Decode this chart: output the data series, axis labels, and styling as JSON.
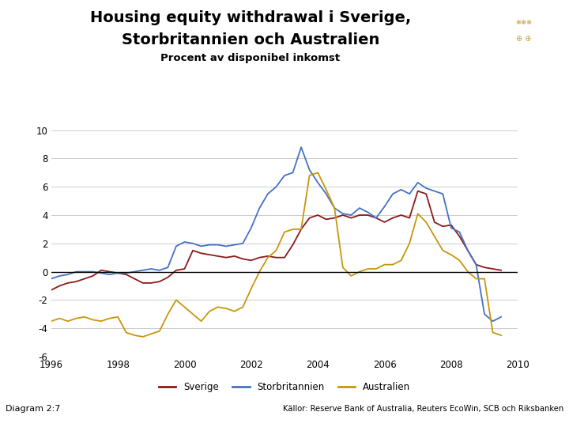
{
  "title_line1": "Housing equity withdrawal i Sverige,",
  "title_line2": "Storbritannien och Australien",
  "subtitle": "Procent av disponibel inkomst",
  "ylim": [
    -6,
    10
  ],
  "yticks": [
    -6,
    -4,
    -2,
    0,
    2,
    4,
    6,
    8,
    10
  ],
  "xlim": [
    1996,
    2010
  ],
  "xticks": [
    1996,
    1998,
    2000,
    2002,
    2004,
    2006,
    2008,
    2010
  ],
  "background_color": "#ffffff",
  "footer_bar_color": "#1a3a7a",
  "legend_labels": [
    "Sverige",
    "Storbritannien",
    "Australien"
  ],
  "source_text": "Källor: Reserve Bank of Australia, Reuters EcoWin, SCB och Riksbanken",
  "diagram_label": "Diagram 2:7",
  "sverige": {
    "years": [
      1996.0,
      1996.25,
      1996.5,
      1996.75,
      1997.0,
      1997.25,
      1997.5,
      1997.75,
      1998.0,
      1998.25,
      1998.5,
      1998.75,
      1999.0,
      1999.25,
      1999.5,
      1999.75,
      2000.0,
      2000.25,
      2000.5,
      2000.75,
      2001.0,
      2001.25,
      2001.5,
      2001.75,
      2002.0,
      2002.25,
      2002.5,
      2002.75,
      2003.0,
      2003.25,
      2003.5,
      2003.75,
      2004.0,
      2004.25,
      2004.5,
      2004.75,
      2005.0,
      2005.25,
      2005.5,
      2005.75,
      2006.0,
      2006.25,
      2006.5,
      2006.75,
      2007.0,
      2007.25,
      2007.5,
      2007.75,
      2008.0,
      2008.25,
      2008.5,
      2008.75,
      2009.0,
      2009.25,
      2009.5
    ],
    "values": [
      -1.3,
      -1.0,
      -0.8,
      -0.7,
      -0.5,
      -0.3,
      0.1,
      0.0,
      -0.1,
      -0.2,
      -0.5,
      -0.8,
      -0.8,
      -0.7,
      -0.4,
      0.1,
      0.2,
      1.5,
      1.3,
      1.2,
      1.1,
      1.0,
      1.1,
      0.9,
      0.8,
      1.0,
      1.1,
      1.0,
      1.0,
      1.9,
      3.0,
      3.8,
      4.0,
      3.7,
      3.8,
      4.0,
      3.8,
      4.0,
      4.0,
      3.8,
      3.5,
      3.8,
      4.0,
      3.8,
      5.7,
      5.5,
      3.5,
      3.2,
      3.3,
      2.5,
      1.5,
      0.5,
      0.3,
      0.2,
      0.1
    ]
  },
  "storbritannien": {
    "years": [
      1996.0,
      1996.25,
      1996.5,
      1996.75,
      1997.0,
      1997.25,
      1997.5,
      1997.75,
      1998.0,
      1998.25,
      1998.5,
      1998.75,
      1999.0,
      1999.25,
      1999.5,
      1999.75,
      2000.0,
      2000.25,
      2000.5,
      2000.75,
      2001.0,
      2001.25,
      2001.5,
      2001.75,
      2002.0,
      2002.25,
      2002.5,
      2002.75,
      2003.0,
      2003.25,
      2003.5,
      2003.75,
      2004.0,
      2004.25,
      2004.5,
      2004.75,
      2005.0,
      2005.25,
      2005.5,
      2005.75,
      2006.0,
      2006.25,
      2006.5,
      2006.75,
      2007.0,
      2007.25,
      2007.5,
      2007.75,
      2008.0,
      2008.25,
      2008.5,
      2008.75,
      2009.0,
      2009.25,
      2009.5
    ],
    "values": [
      -0.5,
      -0.3,
      -0.2,
      0.0,
      0.0,
      0.0,
      -0.1,
      -0.2,
      -0.1,
      -0.1,
      0.0,
      0.1,
      0.2,
      0.1,
      0.3,
      1.8,
      2.1,
      2.0,
      1.8,
      1.9,
      1.9,
      1.8,
      1.9,
      2.0,
      3.1,
      4.5,
      5.5,
      6.0,
      6.8,
      7.0,
      8.8,
      7.2,
      6.3,
      5.5,
      4.5,
      4.1,
      4.0,
      4.5,
      4.2,
      3.8,
      4.6,
      5.5,
      5.8,
      5.5,
      6.3,
      5.9,
      5.7,
      5.5,
      3.1,
      2.8,
      1.5,
      0.5,
      -3.0,
      -3.5,
      -3.2
    ]
  },
  "australien": {
    "years": [
      1996.0,
      1996.25,
      1996.5,
      1996.75,
      1997.0,
      1997.25,
      1997.5,
      1997.75,
      1998.0,
      1998.25,
      1998.5,
      1998.75,
      1999.0,
      1999.25,
      1999.5,
      1999.75,
      2000.0,
      2000.25,
      2000.5,
      2000.75,
      2001.0,
      2001.25,
      2001.5,
      2001.75,
      2002.0,
      2002.25,
      2002.5,
      2002.75,
      2003.0,
      2003.25,
      2003.5,
      2003.75,
      2004.0,
      2004.25,
      2004.5,
      2004.75,
      2005.0,
      2005.25,
      2005.5,
      2005.75,
      2006.0,
      2006.25,
      2006.5,
      2006.75,
      2007.0,
      2007.25,
      2007.5,
      2007.75,
      2008.0,
      2008.25,
      2008.5,
      2008.75,
      2009.0,
      2009.25,
      2009.5
    ],
    "values": [
      -3.5,
      -3.3,
      -3.5,
      -3.3,
      -3.2,
      -3.4,
      -3.5,
      -3.3,
      -3.2,
      -4.3,
      -4.5,
      -4.6,
      -4.4,
      -4.2,
      -3.0,
      -2.0,
      -2.5,
      -3.0,
      -3.5,
      -2.8,
      -2.5,
      -2.6,
      -2.8,
      -2.5,
      -1.2,
      0.0,
      1.0,
      1.5,
      2.8,
      3.0,
      3.0,
      6.8,
      7.0,
      5.8,
      4.5,
      0.3,
      -0.3,
      0.0,
      0.2,
      0.2,
      0.5,
      0.5,
      0.8,
      2.0,
      4.1,
      3.5,
      2.5,
      1.5,
      1.2,
      0.8,
      0.0,
      -0.5,
      -0.5,
      -4.3,
      -4.5
    ]
  },
  "line_color_sverige": "#8B1A1A",
  "line_color_storbritannien": "#4472C4",
  "line_color_australien": "#C8960C",
  "line_width": 1.3,
  "logo_color": "#1a3a7a"
}
